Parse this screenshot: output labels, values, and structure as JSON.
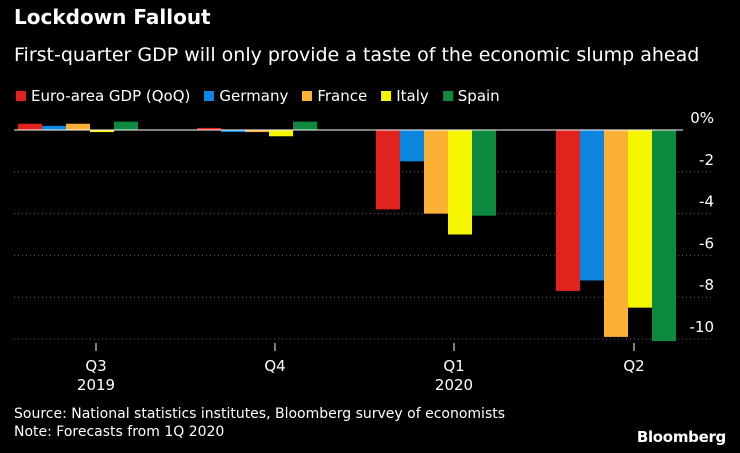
{
  "title": "Lockdown Fallout",
  "subtitle": "First-quarter GDP will only provide a taste of the economic slump ahead",
  "source_line": "Source: National statistics institutes, Bloomberg survey of economists",
  "note_line": "Note: Forecasts from 1Q 2020",
  "logo": "Bloomberg",
  "colors": {
    "background": "#000000",
    "grid": "#666666",
    "axis": "#ffffff"
  },
  "chart_data": {
    "type": "bar",
    "title": "Lockdown Fallout",
    "subtitle": "First-quarter GDP will only provide a taste of the economic slump ahead",
    "categories": [
      "Q3",
      "Q4",
      "Q1",
      "Q2"
    ],
    "category_sublabels": [
      "2019",
      "",
      "2020",
      ""
    ],
    "series": [
      {
        "name": "Euro-area GDP (QoQ)",
        "color": "#e0231c",
        "values": [
          0.3,
          0.1,
          -3.8,
          -7.7
        ]
      },
      {
        "name": "Germany",
        "color": "#0d86e0",
        "values": [
          0.2,
          -0.1,
          -1.5,
          -7.2
        ]
      },
      {
        "name": "France",
        "color": "#fbb136",
        "values": [
          0.3,
          -0.1,
          -4.0,
          -9.9
        ]
      },
      {
        "name": "Italy",
        "color": "#f5f500",
        "values": [
          -0.1,
          -0.3,
          -5.0,
          -8.5
        ]
      },
      {
        "name": "Spain",
        "color": "#0d8a40",
        "values": [
          0.4,
          0.4,
          -4.1,
          -10.1
        ]
      }
    ],
    "ylim": [
      -10.4,
      0.8
    ],
    "yticks": [
      0,
      -2,
      -4,
      -6,
      -8,
      -10
    ],
    "ytick_labels": [
      "0%",
      "-2",
      "-4",
      "-6",
      "-8",
      "-10"
    ],
    "y_axis_side": "right",
    "grid": true,
    "legend_position": "top-left",
    "xlabel": "",
    "ylabel": ""
  }
}
